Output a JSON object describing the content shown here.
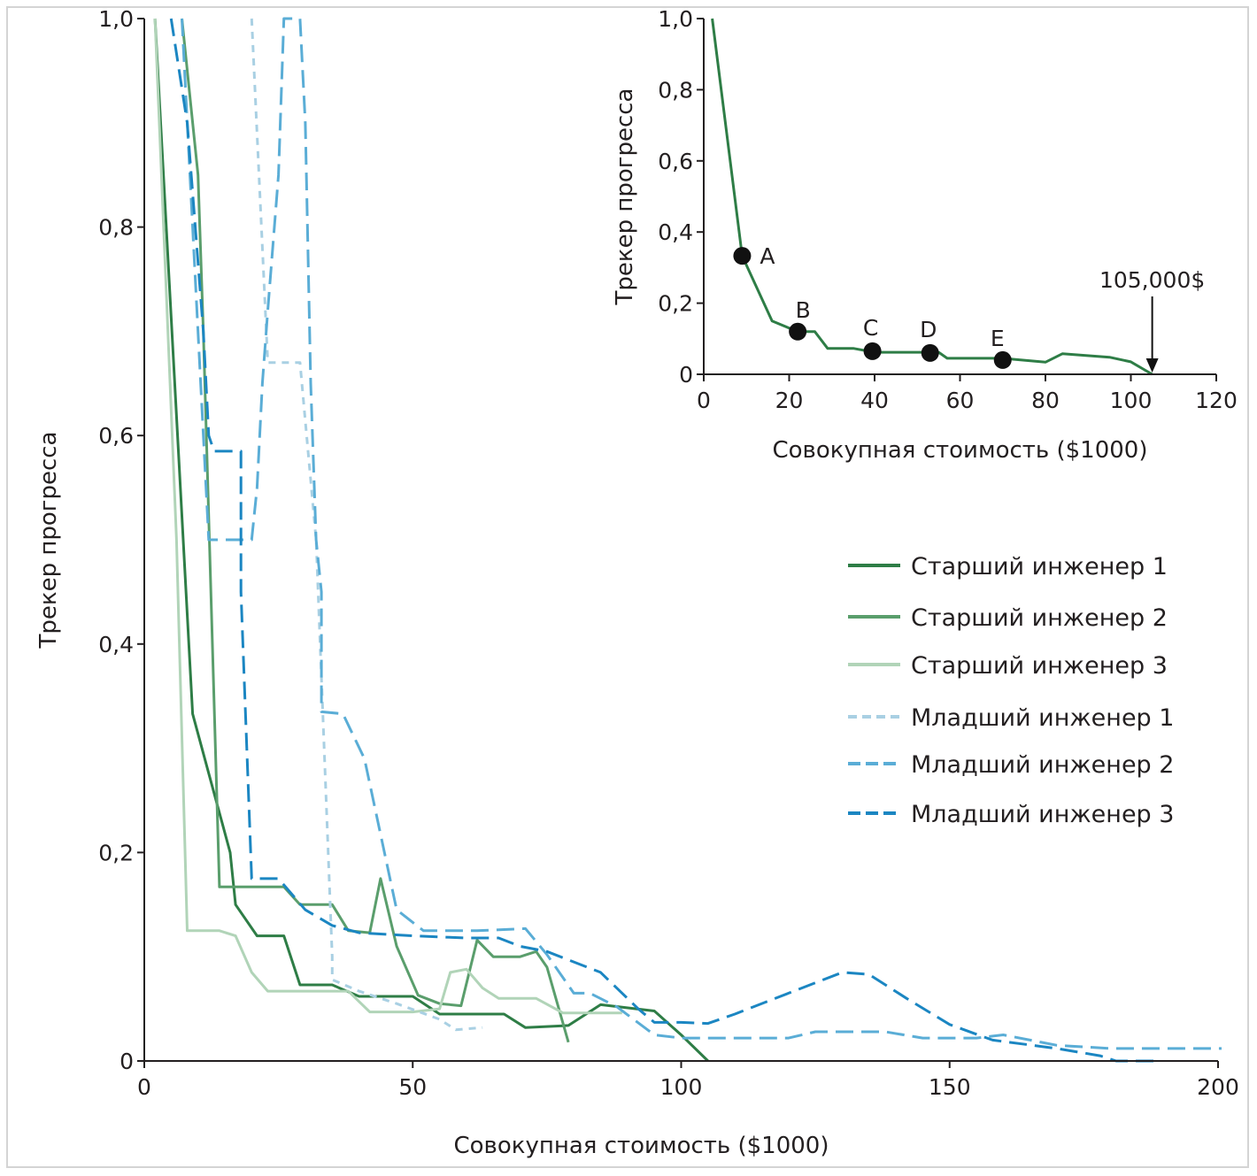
{
  "chart_data": [
    {
      "type": "line",
      "xlabel": "Совокупная стоимость ($1000)",
      "ylabel": "Трекер прогресса",
      "xlim": [
        0,
        200
      ],
      "ylim": [
        0,
        1.0
      ],
      "x_ticks": [
        "0",
        "50",
        "100",
        "150",
        "200"
      ],
      "y_ticks": [
        "0",
        "0,2",
        "0,4",
        "0,6",
        "0,8",
        "1,0"
      ],
      "legend_position": "right",
      "series": [
        {
          "name": "Старший инженер 1",
          "color": "#2e7d46",
          "dash": "solid",
          "width": 3,
          "points": [
            [
              2,
              1.0
            ],
            [
              9,
              0.333
            ],
            [
              16,
              0.2
            ],
            [
              17,
              0.15
            ],
            [
              21,
              0.12
            ],
            [
              26,
              0.12
            ],
            [
              29,
              0.073
            ],
            [
              35,
              0.073
            ],
            [
              40,
              0.062
            ],
            [
              50,
              0.062
            ],
            [
              55,
              0.045
            ],
            [
              63,
              0.045
            ],
            [
              67,
              0.045
            ],
            [
              71,
              0.032
            ],
            [
              79,
              0.034
            ],
            [
              85,
              0.054
            ],
            [
              95,
              0.048
            ],
            [
              100,
              0.025
            ],
            [
              105,
              0
            ]
          ]
        },
        {
          "name": "Старший инженер 2",
          "color": "#5a9e6c",
          "dash": "solid",
          "width": 3,
          "points": [
            [
              7,
              1.0
            ],
            [
              10,
              0.85
            ],
            [
              11,
              0.7
            ],
            [
              14,
              0.167
            ],
            [
              26,
              0.167
            ],
            [
              29,
              0.15
            ],
            [
              35,
              0.15
            ],
            [
              38,
              0.125
            ],
            [
              42,
              0.123
            ],
            [
              44,
              0.175
            ],
            [
              47,
              0.11
            ],
            [
              51,
              0.063
            ],
            [
              55,
              0.055
            ],
            [
              59,
              0.053
            ],
            [
              62,
              0.116
            ],
            [
              65,
              0.1
            ],
            [
              70,
              0.1
            ],
            [
              73,
              0.105
            ],
            [
              75,
              0.09
            ],
            [
              79,
              0.018
            ]
          ]
        },
        {
          "name": "Старший инженер 3",
          "color": "#b1d4b8",
          "dash": "solid",
          "width": 3,
          "points": [
            [
              2,
              1.0
            ],
            [
              6,
              0.5
            ],
            [
              8,
              0.125
            ],
            [
              14,
              0.125
            ],
            [
              17,
              0.12
            ],
            [
              20,
              0.085
            ],
            [
              23,
              0.067
            ],
            [
              32,
              0.067
            ],
            [
              38,
              0.067
            ],
            [
              42,
              0.047
            ],
            [
              50,
              0.047
            ],
            [
              55,
              0.05
            ],
            [
              57,
              0.085
            ],
            [
              60,
              0.088
            ],
            [
              63,
              0.07
            ],
            [
              66,
              0.06
            ],
            [
              73,
              0.06
            ],
            [
              78,
              0.046
            ],
            [
              84,
              0.046
            ],
            [
              89,
              0.046
            ]
          ]
        },
        {
          "name": "Младший инженер 1",
          "color": "#a9d0e3",
          "dash": "8,7",
          "width": 3,
          "points": [
            [
              20,
              1.0
            ],
            [
              23,
              0.67
            ],
            [
              29,
              0.67
            ],
            [
              32,
              0.5
            ],
            [
              35,
              0.1
            ],
            [
              35,
              0.078
            ],
            [
              40,
              0.067
            ],
            [
              47,
              0.055
            ],
            [
              55,
              0.04
            ],
            [
              58,
              0.03
            ],
            [
              63,
              0.032
            ]
          ]
        },
        {
          "name": "Младший инженер 2",
          "color": "#5aadd6",
          "dash": "20,9",
          "width": 3,
          "points": [
            [
              7,
              1.0
            ],
            [
              9,
              0.8
            ],
            [
              12,
              0.5
            ],
            [
              20,
              0.5
            ],
            [
              21,
              0.55
            ],
            [
              22,
              0.65
            ],
            [
              23,
              0.72
            ],
            [
              25,
              0.85
            ],
            [
              26,
              1.0
            ],
            [
              29,
              1.0
            ],
            [
              30,
              0.9
            ],
            [
              31,
              0.65
            ],
            [
              32,
              0.5
            ],
            [
              33,
              0.45
            ],
            [
              33,
              0.335
            ],
            [
              37,
              0.333
            ],
            [
              41,
              0.29
            ],
            [
              47,
              0.145
            ],
            [
              52,
              0.125
            ],
            [
              62,
              0.125
            ],
            [
              71,
              0.127
            ],
            [
              75,
              0.102
            ],
            [
              80,
              0.065
            ],
            [
              83,
              0.065
            ],
            [
              88,
              0.052
            ],
            [
              95,
              0.025
            ],
            [
              100,
              0.022
            ],
            [
              110,
              0.022
            ],
            [
              120,
              0.022
            ],
            [
              125,
              0.028
            ],
            [
              138,
              0.028
            ],
            [
              145,
              0.022
            ],
            [
              155,
              0.022
            ],
            [
              160,
              0.025
            ],
            [
              170,
              0.015
            ],
            [
              180,
              0.012
            ],
            [
              201,
              0.012
            ]
          ]
        },
        {
          "name": "Младший инженер 3",
          "color": "#1b86c2",
          "dash": "20,9",
          "width": 3,
          "points": [
            [
              5,
              1.0
            ],
            [
              8,
              0.9
            ],
            [
              11,
              0.7
            ],
            [
              12,
              0.6
            ],
            [
              13,
              0.585
            ],
            [
              18,
              0.585
            ],
            [
              18,
              0.45
            ],
            [
              20,
              0.175
            ],
            [
              25,
              0.175
            ],
            [
              30,
              0.145
            ],
            [
              35,
              0.13
            ],
            [
              40,
              0.123
            ],
            [
              50,
              0.12
            ],
            [
              60,
              0.118
            ],
            [
              66,
              0.118
            ],
            [
              70,
              0.11
            ],
            [
              75,
              0.105
            ],
            [
              85,
              0.085
            ],
            [
              92,
              0.05
            ],
            [
              95,
              0.037
            ],
            [
              100,
              0.037
            ],
            [
              105,
              0.036
            ],
            [
              110,
              0.045
            ],
            [
              120,
              0.065
            ],
            [
              130,
              0.085
            ],
            [
              135,
              0.083
            ],
            [
              142,
              0.06
            ],
            [
              150,
              0.035
            ],
            [
              158,
              0.02
            ],
            [
              170,
              0.012
            ],
            [
              178,
              0.005
            ],
            [
              181,
              0
            ],
            [
              188,
              0
            ]
          ]
        }
      ]
    },
    {
      "type": "line",
      "xlabel": "Совокупная стоимость ($1000)",
      "ylabel": "Трекер прогресса",
      "xlim": [
        0,
        120
      ],
      "ylim": [
        0,
        1.0
      ],
      "x_ticks": [
        "0",
        "20",
        "40",
        "60",
        "80",
        "100",
        "120"
      ],
      "y_ticks": [
        "0",
        "0,2",
        "0,4",
        "0,6",
        "0,8",
        "1,0"
      ],
      "series": [
        {
          "color": "#2e7d46",
          "points": [
            [
              2,
              1.0
            ],
            [
              9,
              0.333
            ],
            [
              16,
              0.15
            ],
            [
              22,
              0.12
            ],
            [
              26,
              0.12
            ],
            [
              29,
              0.073
            ],
            [
              35,
              0.073
            ],
            [
              40,
              0.062
            ],
            [
              55,
              0.062
            ],
            [
              57,
              0.045
            ],
            [
              70,
              0.045
            ],
            [
              80,
              0.034
            ],
            [
              84,
              0.058
            ],
            [
              95,
              0.048
            ],
            [
              100,
              0.035
            ],
            [
              105,
              0
            ]
          ]
        }
      ],
      "markers": [
        {
          "label": "A",
          "x": 9,
          "y": 0.333
        },
        {
          "label": "B",
          "x": 22,
          "y": 0.12
        },
        {
          "label": "C",
          "x": 39.5,
          "y": 0.065
        },
        {
          "label": "D",
          "x": 53,
          "y": 0.06
        },
        {
          "label": "E",
          "x": 70,
          "y": 0.04
        }
      ],
      "annotation": {
        "text": "105,000$",
        "x": 105,
        "y": 0
      }
    }
  ]
}
